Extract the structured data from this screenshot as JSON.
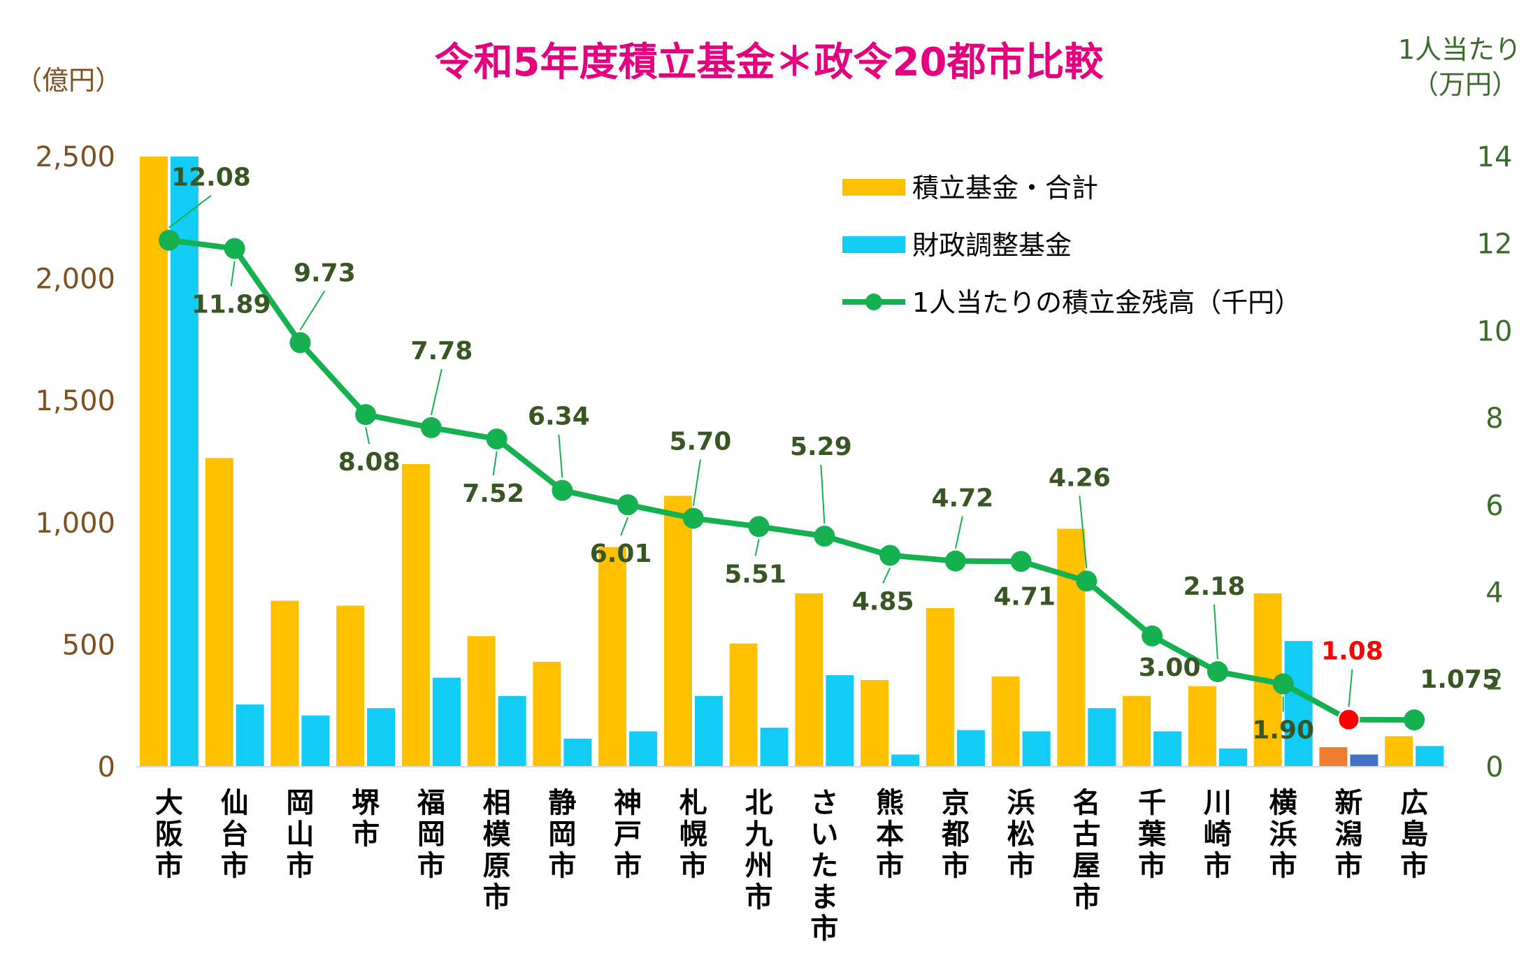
{
  "chart_data": {
    "type": "bar",
    "title": "令和5年度積立基金＊政令20都市比較",
    "left_axis": {
      "unit_label": "（億円）",
      "ylim": [
        0,
        2500
      ],
      "ticks": [
        "0",
        "500",
        "1,000",
        "1,500",
        "2,000",
        "2,500"
      ]
    },
    "right_axis": {
      "unit_label_line1": "1人当たり",
      "unit_label_line2": "（万円）",
      "ylim": [
        0,
        14
      ],
      "ticks": [
        "0",
        "2",
        "4",
        "6",
        "8",
        "10",
        "12",
        "14"
      ]
    },
    "categories": [
      "大阪市",
      "仙台市",
      "岡山市",
      "堺市",
      "福岡市",
      "相模原市",
      "静岡市",
      "神戸市",
      "札幌市",
      "北九州市",
      "さいたま市",
      "熊本市",
      "京都市",
      "浜松市",
      "名古屋市",
      "千葉市",
      "川崎市",
      "横浜市",
      "新潟市",
      "広島市"
    ],
    "series": [
      {
        "name": "積立基金・合計",
        "kind": "bar",
        "axis": "left",
        "color": "#ffc000",
        "values": [
          2500,
          1265,
          680,
          660,
          1240,
          535,
          430,
          900,
          1110,
          505,
          710,
          355,
          650,
          370,
          975,
          290,
          330,
          710,
          80,
          125
        ],
        "point_colors": {
          "18": "#ed7d31"
        }
      },
      {
        "name": "財政調整基金",
        "kind": "bar",
        "axis": "left",
        "color": "#12ccf5",
        "values": [
          2500,
          255,
          210,
          240,
          365,
          290,
          115,
          145,
          290,
          160,
          375,
          50,
          150,
          145,
          240,
          145,
          75,
          515,
          50,
          85
        ],
        "point_colors": {
          "18": "#4472c4"
        }
      },
      {
        "name": "1人当たりの積立金残高(千円)",
        "kind": "line",
        "axis": "right",
        "color": "#15b150",
        "values": [
          12.08,
          11.89,
          9.73,
          8.08,
          7.78,
          7.52,
          6.34,
          6.01,
          5.7,
          5.51,
          5.29,
          4.85,
          4.72,
          4.71,
          4.26,
          3.0,
          2.18,
          1.9,
          1.08,
          1.075
        ],
        "data_labels": [
          "12.08",
          "11.89",
          "9.73",
          "8.08",
          "7.78",
          "7.52",
          "6.34",
          "6.01",
          "5.70",
          "5.51",
          "5.29",
          "4.85",
          "4.72",
          "4.71",
          "4.26",
          "3.00",
          "2.18",
          "1.90",
          "1.08",
          "1.075"
        ],
        "highlight_index": 18,
        "highlight_color": "#ff0000"
      }
    ],
    "legend": {
      "placement": "top-right",
      "entries": [
        "積立基金・合計",
        "財政調整基金",
        "1人当たりの積立金残高（千円）"
      ]
    },
    "grid": false
  }
}
